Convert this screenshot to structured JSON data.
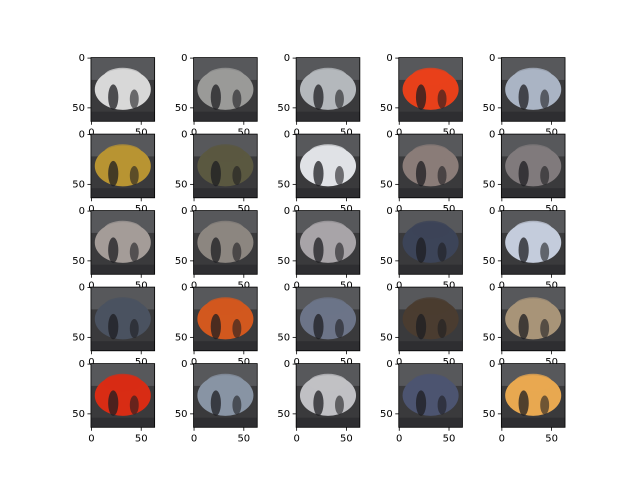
{
  "chart_data": [
    {
      "type": "image",
      "color": "#d8d8d8",
      "xlim": [
        -0.5,
        63.5
      ],
      "ylim": [
        63.5,
        -0.5
      ],
      "xticks": [
        0,
        50
      ],
      "yticks": [
        0,
        50
      ]
    },
    {
      "type": "image",
      "color": "#9a9a98",
      "xlim": [
        -0.5,
        63.5
      ],
      "ylim": [
        63.5,
        -0.5
      ],
      "xticks": [
        0,
        50
      ],
      "yticks": [
        0,
        50
      ]
    },
    {
      "type": "image",
      "color": "#b4b8bc",
      "xlim": [
        -0.5,
        63.5
      ],
      "ylim": [
        63.5,
        -0.5
      ],
      "xticks": [
        0,
        50
      ],
      "yticks": [
        0,
        50
      ]
    },
    {
      "type": "image",
      "color": "#e8401a",
      "xlim": [
        -0.5,
        63.5
      ],
      "ylim": [
        63.5,
        -0.5
      ],
      "xticks": [
        0,
        50
      ],
      "yticks": [
        0,
        50
      ]
    },
    {
      "type": "image",
      "color": "#aab4c4",
      "xlim": [
        -0.5,
        63.5
      ],
      "ylim": [
        63.5,
        -0.5
      ],
      "xticks": [
        0,
        50
      ],
      "yticks": [
        0,
        50
      ]
    },
    {
      "type": "image",
      "color": "#b89432",
      "xlim": [
        -0.5,
        63.5
      ],
      "ylim": [
        63.5,
        -0.5
      ],
      "xticks": [
        0,
        50
      ],
      "yticks": [
        0,
        50
      ]
    },
    {
      "type": "image",
      "color": "#5a5840",
      "xlim": [
        -0.5,
        63.5
      ],
      "ylim": [
        63.5,
        -0.5
      ],
      "xticks": [
        0,
        50
      ],
      "yticks": [
        0,
        50
      ]
    },
    {
      "type": "image",
      "color": "#e0e2e6",
      "xlim": [
        -0.5,
        63.5
      ],
      "ylim": [
        63.5,
        -0.5
      ],
      "xticks": [
        0,
        50
      ],
      "yticks": [
        0,
        50
      ]
    },
    {
      "type": "image",
      "color": "#8a7c78",
      "xlim": [
        -0.5,
        63.5
      ],
      "ylim": [
        63.5,
        -0.5
      ],
      "xticks": [
        0,
        50
      ],
      "yticks": [
        0,
        50
      ]
    },
    {
      "type": "image",
      "color": "#807a7c",
      "xlim": [
        -0.5,
        63.5
      ],
      "ylim": [
        63.5,
        -0.5
      ],
      "xticks": [
        0,
        50
      ],
      "yticks": [
        0,
        50
      ]
    },
    {
      "type": "image",
      "color": "#a49c98",
      "xlim": [
        -0.5,
        63.5
      ],
      "ylim": [
        63.5,
        -0.5
      ],
      "xticks": [
        0,
        50
      ],
      "yticks": [
        0,
        50
      ]
    },
    {
      "type": "image",
      "color": "#8c8680",
      "xlim": [
        -0.5,
        63.5
      ],
      "ylim": [
        63.5,
        -0.5
      ],
      "xticks": [
        0,
        50
      ],
      "yticks": [
        0,
        50
      ]
    },
    {
      "type": "image",
      "color": "#a8a4a8",
      "xlim": [
        -0.5,
        63.5
      ],
      "ylim": [
        63.5,
        -0.5
      ],
      "xticks": [
        0,
        50
      ],
      "yticks": [
        0,
        50
      ]
    },
    {
      "type": "image",
      "color": "#3c4458",
      "xlim": [
        -0.5,
        63.5
      ],
      "ylim": [
        63.5,
        -0.5
      ],
      "xticks": [
        0,
        50
      ],
      "yticks": [
        0,
        50
      ]
    },
    {
      "type": "image",
      "color": "#c4ccdc",
      "xlim": [
        -0.5,
        63.5
      ],
      "ylim": [
        63.5,
        -0.5
      ],
      "xticks": [
        0,
        50
      ],
      "yticks": [
        0,
        50
      ]
    },
    {
      "type": "image",
      "color": "#4a5260",
      "xlim": [
        -0.5,
        63.5
      ],
      "ylim": [
        63.5,
        -0.5
      ],
      "xticks": [
        0,
        50
      ],
      "yticks": [
        0,
        50
      ]
    },
    {
      "type": "image",
      "color": "#d2581e",
      "xlim": [
        -0.5,
        63.5
      ],
      "ylim": [
        63.5,
        -0.5
      ],
      "xticks": [
        0,
        50
      ],
      "yticks": [
        0,
        50
      ]
    },
    {
      "type": "image",
      "color": "#6c7488",
      "xlim": [
        -0.5,
        63.5
      ],
      "ylim": [
        63.5,
        -0.5
      ],
      "xticks": [
        0,
        50
      ],
      "yticks": [
        0,
        50
      ]
    },
    {
      "type": "image",
      "color": "#4a3c30",
      "xlim": [
        -0.5,
        63.5
      ],
      "ylim": [
        63.5,
        -0.5
      ],
      "xticks": [
        0,
        50
      ],
      "yticks": [
        0,
        50
      ]
    },
    {
      "type": "image",
      "color": "#a89478",
      "xlim": [
        -0.5,
        63.5
      ],
      "ylim": [
        63.5,
        -0.5
      ],
      "xticks": [
        0,
        50
      ],
      "yticks": [
        0,
        50
      ]
    },
    {
      "type": "image",
      "color": "#d82c14",
      "xlim": [
        -0.5,
        63.5
      ],
      "ylim": [
        63.5,
        -0.5
      ],
      "xticks": [
        0,
        50
      ],
      "yticks": [
        0,
        50
      ]
    },
    {
      "type": "image",
      "color": "#8894a4",
      "xlim": [
        -0.5,
        63.5
      ],
      "ylim": [
        63.5,
        -0.5
      ],
      "xticks": [
        0,
        50
      ],
      "yticks": [
        0,
        50
      ]
    },
    {
      "type": "image",
      "color": "#c0c0c4",
      "xlim": [
        -0.5,
        63.5
      ],
      "ylim": [
        63.5,
        -0.5
      ],
      "xticks": [
        0,
        50
      ],
      "yticks": [
        0,
        50
      ]
    },
    {
      "type": "image",
      "color": "#4c5470",
      "xlim": [
        -0.5,
        63.5
      ],
      "ylim": [
        63.5,
        -0.5
      ],
      "xticks": [
        0,
        50
      ],
      "yticks": [
        0,
        50
      ]
    },
    {
      "type": "image",
      "color": "#e8a850",
      "xlim": [
        -0.5,
        63.5
      ],
      "ylim": [
        63.5,
        -0.5
      ],
      "xticks": [
        0,
        50
      ],
      "yticks": [
        0,
        50
      ]
    }
  ]
}
